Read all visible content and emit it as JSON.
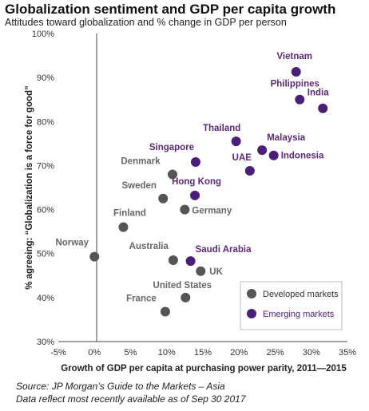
{
  "chart_data": {
    "type": "scatter",
    "title": "Globalization sentiment and GDP per capita growth",
    "subtitle": "Attitudes toward globalization and % change in GDP per person",
    "xlabel": "Growth of GDP per capita at purchasing power parity, 2011—2015",
    "ylabel": "% agreeing: “Globalization is a force for good”",
    "xlim": [
      -5,
      35
    ],
    "ylim": [
      30,
      100
    ],
    "x_ticks": [
      "-5%",
      "0%",
      "5%",
      "10%",
      "15%",
      "20%",
      "25%",
      "30%",
      "35%"
    ],
    "y_ticks": [
      "30%",
      "40%",
      "50%",
      "60%",
      "70%",
      "80%",
      "90%",
      "100%"
    ],
    "grid": false,
    "legend_position": "bottom-right",
    "series": [
      {
        "name": "Developed markets",
        "color": "#555555",
        "label_color": "#666666",
        "points": [
          {
            "label": "Norway",
            "x": 0.0,
            "y": 49.3
          },
          {
            "label": "Finland",
            "x": 4.0,
            "y": 56.0
          },
          {
            "label": "Sweden",
            "x": 9.5,
            "y": 62.5
          },
          {
            "label": "Denmark",
            "x": 10.8,
            "y": 68.0
          },
          {
            "label": "Germany",
            "x": 12.5,
            "y": 60.0
          },
          {
            "label": "Australia",
            "x": 10.9,
            "y": 48.5
          },
          {
            "label": "UK",
            "x": 14.7,
            "y": 46.0
          },
          {
            "label": "United States",
            "x": 12.6,
            "y": 40.0
          },
          {
            "label": "France",
            "x": 9.8,
            "y": 36.8
          }
        ]
      },
      {
        "name": "Emerging markets",
        "color": "#4b1e78",
        "label_color": "#5a2a74",
        "points": [
          {
            "label": "Vietnam",
            "x": 27.9,
            "y": 91.3
          },
          {
            "label": "Philippines",
            "x": 28.4,
            "y": 85.0
          },
          {
            "label": "India",
            "x": 31.6,
            "y": 83.0
          },
          {
            "label": "Thailand",
            "x": 19.6,
            "y": 75.5
          },
          {
            "label": "Malaysia",
            "x": 23.2,
            "y": 73.5
          },
          {
            "label": "Indonesia",
            "x": 24.8,
            "y": 72.3
          },
          {
            "label": "UAE",
            "x": 21.5,
            "y": 68.8
          },
          {
            "label": "Singapore",
            "x": 14.0,
            "y": 70.8
          },
          {
            "label": "Hong Kong",
            "x": 13.9,
            "y": 63.2
          },
          {
            "label": "Saudi Arabia",
            "x": 13.3,
            "y": 48.3
          }
        ]
      }
    ]
  },
  "source": {
    "line1": "Source: JP Morgan’s Guide to the Markets – Asia",
    "line2": "Data reflect most recently available as of Sep 30 2017"
  }
}
